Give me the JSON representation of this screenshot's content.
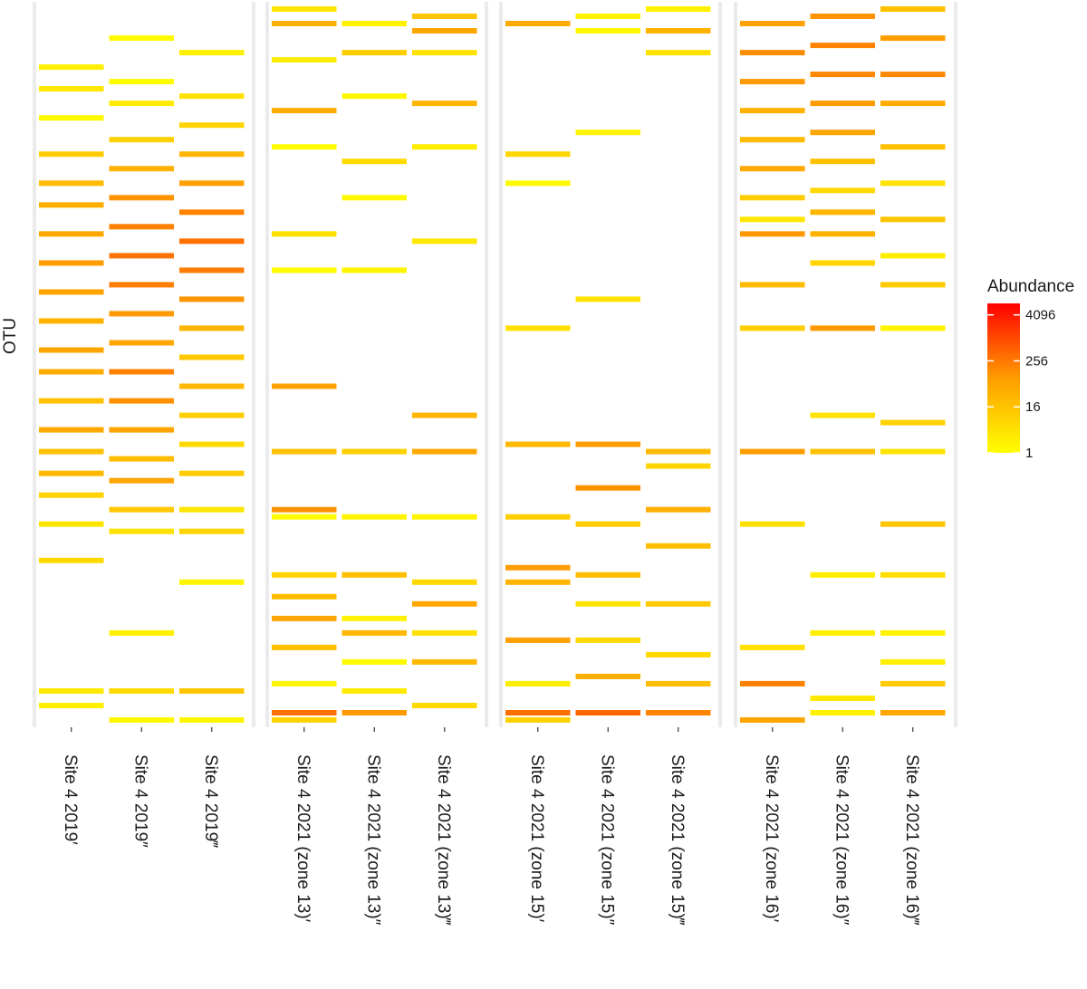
{
  "chart_data": {
    "type": "heatmap",
    "title": "",
    "xlabel": "",
    "ylabel": "OTU",
    "facets": [
      {
        "name": "2019",
        "samples": [
          {
            "label": "Site 4 2019′",
            "rows": [
              [
                0.91,
                0.8
              ],
              [
                0.88,
                1.2
              ],
              [
                0.84,
                0.3
              ],
              [
                0.79,
                2.6
              ],
              [
                0.75,
                3.4
              ],
              [
                0.72,
                4.1
              ],
              [
                0.68,
                4.4
              ],
              [
                0.64,
                5.0
              ],
              [
                0.6,
                4.7
              ],
              [
                0.56,
                3.9
              ],
              [
                0.52,
                4.6
              ],
              [
                0.49,
                4.3
              ],
              [
                0.45,
                3.2
              ],
              [
                0.41,
                4.4
              ],
              [
                0.38,
                3.1
              ],
              [
                0.35,
                3.6
              ],
              [
                0.32,
                2.3
              ],
              [
                0.28,
                1.4
              ],
              [
                0.23,
                2.0
              ],
              [
                0.05,
                1.1
              ],
              [
                0.03,
                0.8
              ]
            ]
          },
          {
            "label": "Site 4 2019″",
            "rows": [
              [
                0.95,
                0.3
              ],
              [
                0.89,
                0.2
              ],
              [
                0.86,
                1.0
              ],
              [
                0.81,
                2.4
              ],
              [
                0.77,
                4.0
              ],
              [
                0.73,
                5.5
              ],
              [
                0.69,
                6.4
              ],
              [
                0.65,
                7.1
              ],
              [
                0.61,
                6.6
              ],
              [
                0.57,
                5.2
              ],
              [
                0.53,
                4.6
              ],
              [
                0.49,
                6.3
              ],
              [
                0.45,
                5.6
              ],
              [
                0.41,
                4.7
              ],
              [
                0.37,
                3.4
              ],
              [
                0.34,
                4.6
              ],
              [
                0.3,
                2.8
              ],
              [
                0.27,
                1.5
              ],
              [
                0.13,
                0.8
              ],
              [
                0.05,
                1.9
              ],
              [
                0.01,
                0.3
              ]
            ]
          },
          {
            "label": "Site 4 2019‴",
            "rows": [
              [
                0.93,
                0.7
              ],
              [
                0.87,
                1.5
              ],
              [
                0.83,
                2.2
              ],
              [
                0.79,
                3.7
              ],
              [
                0.75,
                4.9
              ],
              [
                0.71,
                6.3
              ],
              [
                0.67,
                7.2
              ],
              [
                0.63,
                6.7
              ],
              [
                0.59,
                5.4
              ],
              [
                0.55,
                3.8
              ],
              [
                0.51,
                2.8
              ],
              [
                0.47,
                3.6
              ],
              [
                0.43,
                2.5
              ],
              [
                0.39,
                1.9
              ],
              [
                0.35,
                2.6
              ],
              [
                0.3,
                1.3
              ],
              [
                0.27,
                2.2
              ],
              [
                0.2,
                0.5
              ],
              [
                0.05,
                2.9
              ],
              [
                0.01,
                0.4
              ]
            ]
          }
        ]
      },
      {
        "name": "zone 13",
        "samples": [
          {
            "label": "Site 4 2021 (zone 13)′",
            "rows": [
              [
                0.99,
                1.3
              ],
              [
                0.97,
                4.1
              ],
              [
                0.92,
                0.9
              ],
              [
                0.85,
                4.3
              ],
              [
                0.8,
                0.2
              ],
              [
                0.68,
                1.6
              ],
              [
                0.63,
                0.2
              ],
              [
                0.47,
                4.8
              ],
              [
                0.38,
                3.1
              ],
              [
                0.3,
                5.6
              ],
              [
                0.29,
                0.2
              ],
              [
                0.21,
                2.2
              ],
              [
                0.18,
                3.3
              ],
              [
                0.15,
                4.6
              ],
              [
                0.11,
                3.2
              ],
              [
                0.06,
                0.5
              ],
              [
                0.02,
                7.4
              ],
              [
                0.01,
                2.3
              ]
            ]
          },
          {
            "label": "Site 4 2021 (zone 13)″",
            "rows": [
              [
                0.97,
                0.7
              ],
              [
                0.93,
                2.6
              ],
              [
                0.87,
                0.4
              ],
              [
                0.78,
                1.9
              ],
              [
                0.73,
                0.3
              ],
              [
                0.63,
                0.5
              ],
              [
                0.38,
                2.4
              ],
              [
                0.29,
                0.5
              ],
              [
                0.21,
                3.3
              ],
              [
                0.15,
                0.6
              ],
              [
                0.13,
                3.7
              ],
              [
                0.09,
                0.3
              ],
              [
                0.05,
                1.0
              ],
              [
                0.02,
                5.1
              ]
            ]
          },
          {
            "label": "Site 4 2021 (zone 13)‴",
            "rows": [
              [
                0.98,
                3.0
              ],
              [
                0.96,
                4.6
              ],
              [
                0.93,
                1.5
              ],
              [
                0.86,
                3.8
              ],
              [
                0.8,
                0.9
              ],
              [
                0.67,
                1.2
              ],
              [
                0.43,
                3.8
              ],
              [
                0.38,
                4.4
              ],
              [
                0.29,
                0.5
              ],
              [
                0.2,
                2.0
              ],
              [
                0.17,
                4.5
              ],
              [
                0.13,
                1.6
              ],
              [
                0.09,
                3.6
              ],
              [
                0.03,
                1.9
              ]
            ]
          }
        ]
      },
      {
        "name": "zone 15",
        "samples": [
          {
            "label": "Site 4 2021 (zone 15)′",
            "rows": [
              [
                0.97,
                4.3
              ],
              [
                0.79,
                2.1
              ],
              [
                0.75,
                0.3
              ],
              [
                0.55,
                1.6
              ],
              [
                0.39,
                3.6
              ],
              [
                0.29,
                2.5
              ],
              [
                0.22,
                5.0
              ],
              [
                0.2,
                3.8
              ],
              [
                0.12,
                4.8
              ],
              [
                0.06,
                0.9
              ],
              [
                0.02,
                7.4
              ],
              [
                0.01,
                2.4
              ]
            ]
          },
          {
            "label": "Site 4 2021 (zone 15)″",
            "rows": [
              [
                0.98,
                0.6
              ],
              [
                0.96,
                0.4
              ],
              [
                0.82,
                0.6
              ],
              [
                0.59,
                1.5
              ],
              [
                0.39,
                5.0
              ],
              [
                0.33,
                5.5
              ],
              [
                0.28,
                2.5
              ],
              [
                0.21,
                3.4
              ],
              [
                0.17,
                1.5
              ],
              [
                0.12,
                2.1
              ],
              [
                0.07,
                4.1
              ],
              [
                0.02,
                7.8
              ]
            ]
          },
          {
            "label": "Site 4 2021 (zone 15)‴",
            "rows": [
              [
                0.99,
                0.7
              ],
              [
                0.96,
                3.9
              ],
              [
                0.93,
                1.6
              ],
              [
                0.38,
                3.5
              ],
              [
                0.36,
                2.2
              ],
              [
                0.3,
                4.1
              ],
              [
                0.25,
                3.3
              ],
              [
                0.17,
                2.8
              ],
              [
                0.1,
                2.0
              ],
              [
                0.06,
                3.3
              ],
              [
                0.02,
                6.2
              ]
            ]
          }
        ]
      },
      {
        "name": "zone 16",
        "samples": [
          {
            "label": "Site 4 2021 (zone 16)′",
            "rows": [
              [
                0.97,
                4.8
              ],
              [
                0.93,
                5.8
              ],
              [
                0.89,
                5.1
              ],
              [
                0.85,
                4.0
              ],
              [
                0.81,
                3.5
              ],
              [
                0.77,
                4.4
              ],
              [
                0.73,
                2.6
              ],
              [
                0.7,
                1.3
              ],
              [
                0.68,
                5.3
              ],
              [
                0.61,
                3.5
              ],
              [
                0.55,
                2.5
              ],
              [
                0.38,
                5.0
              ],
              [
                0.28,
                1.7
              ],
              [
                0.11,
                1.5
              ],
              [
                0.06,
                6.4
              ],
              [
                0.01,
                4.6
              ]
            ]
          },
          {
            "label": "Site 4 2021 (zone 16)″",
            "rows": [
              [
                0.98,
                5.5
              ],
              [
                0.94,
                6.3
              ],
              [
                0.9,
                6.0
              ],
              [
                0.86,
                5.1
              ],
              [
                0.82,
                4.6
              ],
              [
                0.78,
                3.2
              ],
              [
                0.74,
                2.0
              ],
              [
                0.71,
                3.7
              ],
              [
                0.68,
                4.0
              ],
              [
                0.64,
                2.2
              ],
              [
                0.55,
                5.2
              ],
              [
                0.43,
                1.5
              ],
              [
                0.38,
                3.2
              ],
              [
                0.21,
                0.9
              ],
              [
                0.13,
                0.8
              ],
              [
                0.04,
                1.2
              ],
              [
                0.02,
                0.7
              ]
            ]
          },
          {
            "label": "Site 4 2021 (zone 16)‴",
            "rows": [
              [
                0.99,
                3.2
              ],
              [
                0.95,
                5.0
              ],
              [
                0.9,
                6.0
              ],
              [
                0.86,
                4.3
              ],
              [
                0.8,
                3.1
              ],
              [
                0.75,
                1.5
              ],
              [
                0.7,
                3.0
              ],
              [
                0.65,
                0.9
              ],
              [
                0.61,
                2.7
              ],
              [
                0.55,
                0.6
              ],
              [
                0.42,
                2.3
              ],
              [
                0.38,
                1.4
              ],
              [
                0.28,
                3.0
              ],
              [
                0.21,
                1.7
              ],
              [
                0.13,
                0.6
              ],
              [
                0.09,
                0.8
              ],
              [
                0.06,
                2.7
              ],
              [
                0.02,
                4.5
              ]
            ]
          }
        ]
      }
    ],
    "colorbar": {
      "title": "Abundance",
      "scale": "log2",
      "range": [
        1,
        8192
      ],
      "ticks": [
        1,
        16,
        256,
        4096
      ],
      "low_color": "#ffff00",
      "high_color": "#ff0000"
    }
  }
}
